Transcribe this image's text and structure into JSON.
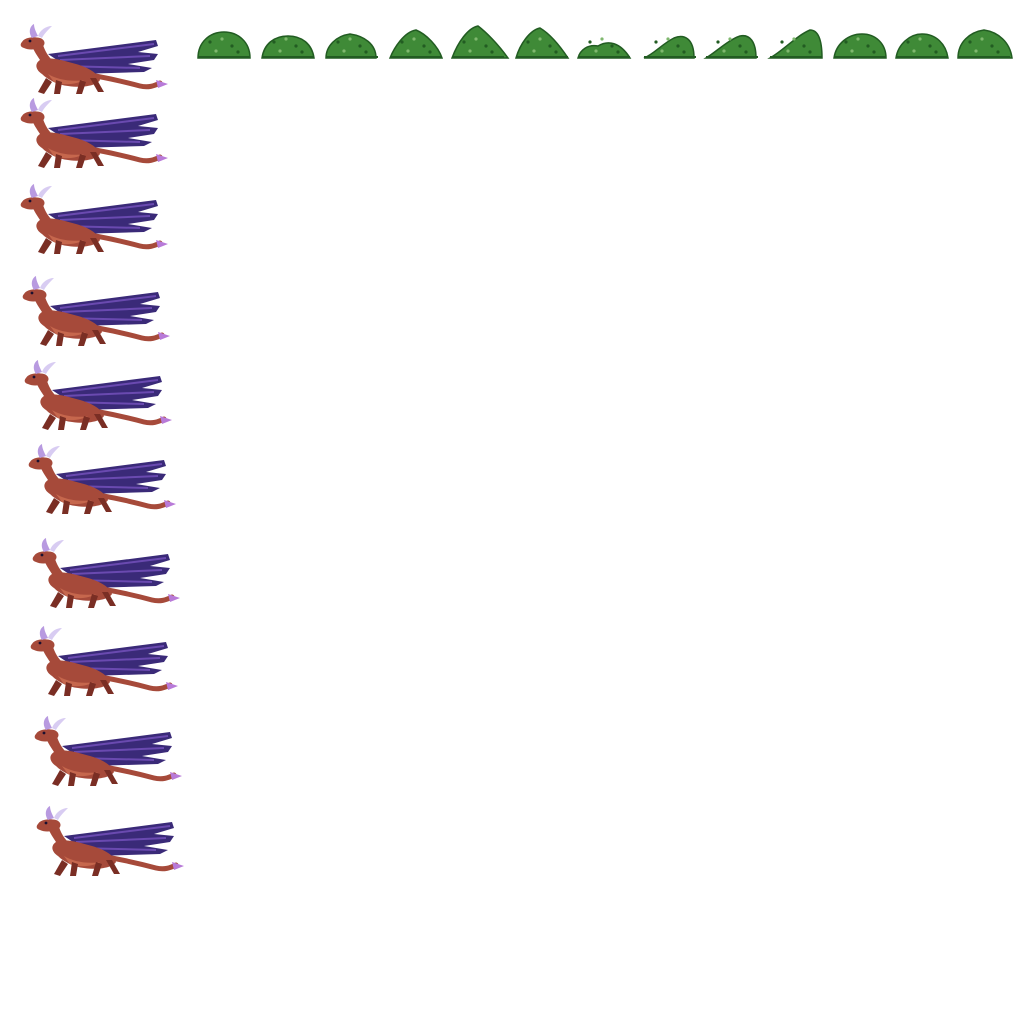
{
  "sprite_sheet": {
    "background": "#ffffff",
    "dragon_frames": 10,
    "bush_frames": 13,
    "colors": {
      "dragon_body": "#a64a3a",
      "dragon_body_dark": "#7a2e24",
      "dragon_belly": "#c6674d",
      "dragon_wing": "#3a2a78",
      "dragon_wing_light": "#6a4ab0",
      "dragon_horn": "#b89ae0",
      "dragon_horn_light": "#d8ccf2",
      "dragon_tail_tip": "#b87ad8",
      "bush_main": "#3f8a37",
      "bush_dark": "#225c22",
      "bush_light": "#7fb86e"
    }
  }
}
